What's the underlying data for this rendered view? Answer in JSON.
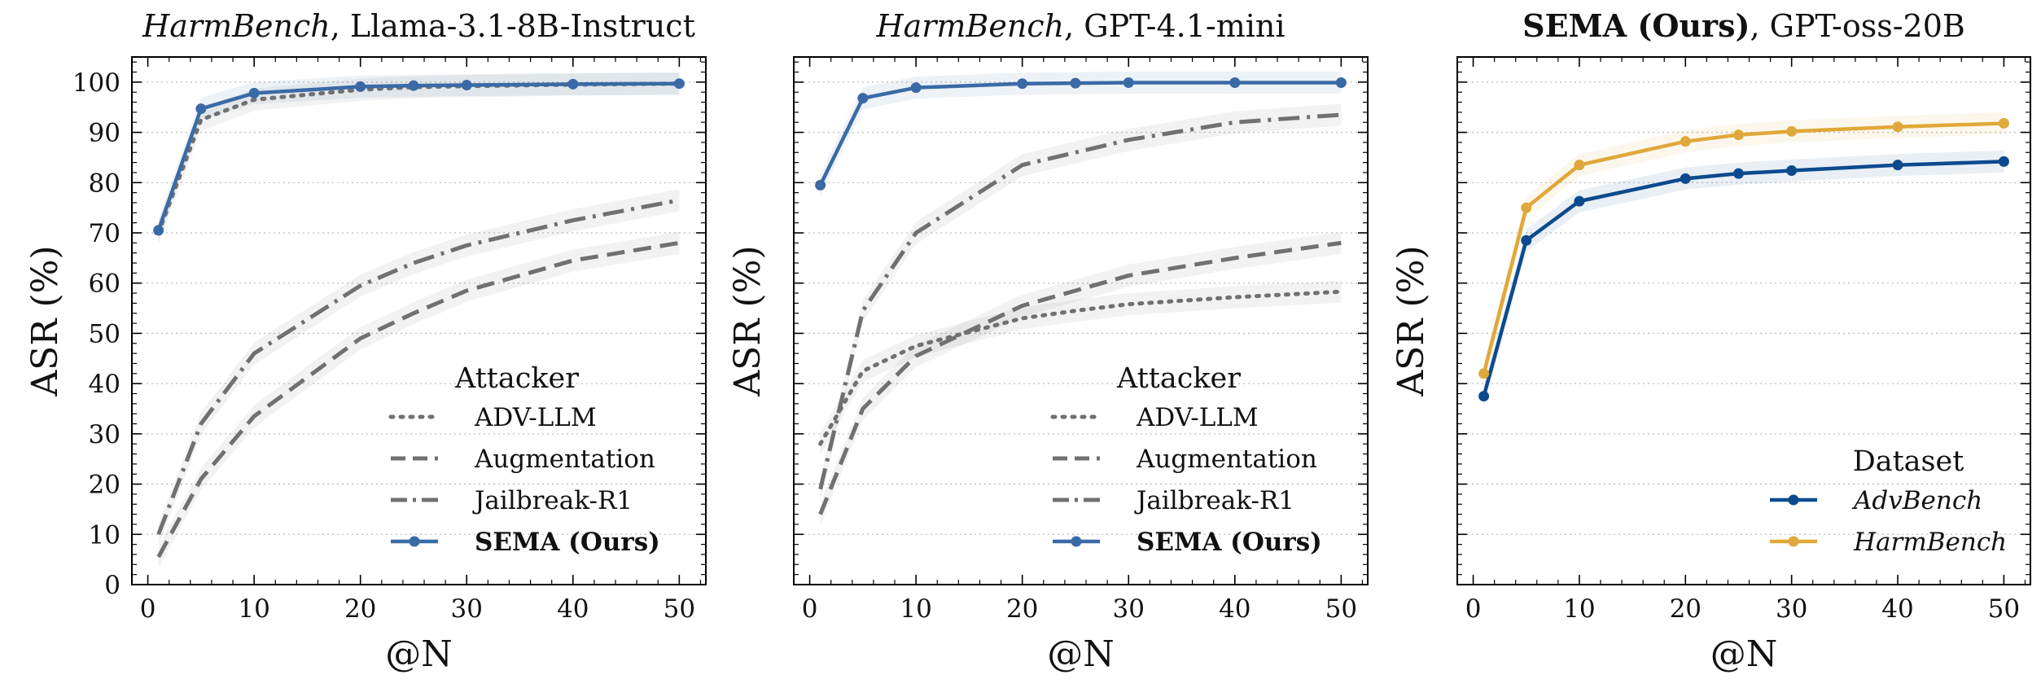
{
  "chart_data": [
    {
      "type": "line",
      "title_italic": "HarmBench",
      "title_rest": ", Llama-3.1-8B-Instruct",
      "xlabel": "@N",
      "ylabel": "ASR (%)",
      "xlim": [
        -1.5,
        52.5
      ],
      "ylim": [
        0,
        105
      ],
      "xticks": [
        0,
        10,
        20,
        30,
        40,
        50
      ],
      "yticks": [
        0,
        10,
        20,
        30,
        40,
        50,
        60,
        70,
        80,
        90,
        100
      ],
      "grid": "horizontal-dotted",
      "legend_title": "Attacker",
      "legend_position": "lower-right",
      "series": [
        {
          "name": "ADV-LLM",
          "style": "dotted",
          "color": "#707070",
          "x": [
            1,
            5,
            10,
            20,
            25,
            30,
            40,
            50
          ],
          "y": [
            70,
            92.5,
            96.5,
            98.5,
            99,
            99.2,
            99.5,
            99.7
          ]
        },
        {
          "name": "Augmentation",
          "style": "dashed",
          "color": "#707070",
          "x": [
            1,
            5,
            10,
            20,
            25,
            30,
            40,
            50
          ],
          "y": [
            5.5,
            21,
            33.5,
            49,
            54,
            58.5,
            64.5,
            68
          ]
        },
        {
          "name": "Jailbreak-R1",
          "style": "dashdot",
          "color": "#707070",
          "x": [
            1,
            5,
            10,
            20,
            25,
            30,
            40,
            50
          ],
          "y": [
            10,
            32,
            46,
            59.5,
            64,
            67.5,
            72.5,
            76.5
          ]
        },
        {
          "name": "SEMA (Ours)",
          "bold": true,
          "style": "solid",
          "markers": true,
          "color": "#3a6aa6",
          "x": [
            1,
            5,
            10,
            20,
            25,
            30,
            40,
            50
          ],
          "y": [
            70.5,
            94.7,
            97.8,
            99.1,
            99.3,
            99.4,
            99.6,
            99.7
          ]
        }
      ]
    },
    {
      "type": "line",
      "title_italic": "HarmBench",
      "title_rest": ", GPT-4.1-mini",
      "xlabel": "@N",
      "ylabel": "ASR (%)",
      "xlim": [
        -1.5,
        52.5
      ],
      "ylim": [
        0,
        105
      ],
      "xticks": [
        0,
        10,
        20,
        30,
        40,
        50
      ],
      "yticks": [
        0,
        10,
        20,
        30,
        40,
        50,
        60,
        70,
        80,
        90,
        100
      ],
      "grid": "horizontal-dotted",
      "legend_title": "Attacker",
      "legend_position": "lower-right",
      "series": [
        {
          "name": "ADV-LLM",
          "style": "dotted",
          "color": "#707070",
          "x": [
            1,
            5,
            10,
            20,
            25,
            30,
            40,
            50
          ],
          "y": [
            28,
            42.5,
            47.5,
            53,
            54.5,
            55.8,
            57.2,
            58.3
          ]
        },
        {
          "name": "Augmentation",
          "style": "dashed",
          "color": "#707070",
          "x": [
            1,
            5,
            10,
            20,
            25,
            30,
            40,
            50
          ],
          "y": [
            14,
            35,
            45.5,
            55.5,
            58.5,
            61.5,
            65,
            68
          ]
        },
        {
          "name": "Jailbreak-R1",
          "style": "dashdot",
          "color": "#707070",
          "x": [
            1,
            5,
            10,
            20,
            25,
            30,
            40,
            50
          ],
          "y": [
            19,
            54.5,
            70,
            83.5,
            86,
            88.5,
            92,
            93.5
          ]
        },
        {
          "name": "SEMA (Ours)",
          "bold": true,
          "style": "solid",
          "markers": true,
          "color": "#3a6aa6",
          "x": [
            1,
            5,
            10,
            20,
            25,
            30,
            40,
            50
          ],
          "y": [
            79.5,
            96.8,
            98.9,
            99.7,
            99.8,
            99.9,
            99.9,
            99.9
          ]
        }
      ]
    },
    {
      "type": "line",
      "title_bold": "SEMA (Ours)",
      "title_rest": ", GPT-oss-20B",
      "xlabel": "@N",
      "ylabel": "ASR (%)",
      "xlim": [
        -1.5,
        52.5
      ],
      "ylim": [
        0,
        105
      ],
      "xticks": [
        0,
        10,
        20,
        30,
        40,
        50
      ],
      "yticks": [
        0,
        10,
        20,
        30,
        40,
        50,
        60,
        70,
        80,
        90,
        100
      ],
      "grid": "horizontal-dotted",
      "legend_title": "Dataset",
      "legend_position": "lower-right",
      "series": [
        {
          "name": "AdvBench",
          "italic": true,
          "style": "solid",
          "markers": true,
          "color": "#0c4a8e",
          "x": [
            1,
            5,
            10,
            20,
            25,
            30,
            40,
            50
          ],
          "y": [
            37.5,
            68.5,
            76.3,
            80.8,
            81.8,
            82.4,
            83.5,
            84.2
          ]
        },
        {
          "name": "HarmBench",
          "italic": true,
          "style": "solid",
          "markers": true,
          "color": "#e0a83a",
          "x": [
            1,
            5,
            10,
            20,
            25,
            30,
            40,
            50
          ],
          "y": [
            42,
            75,
            83.5,
            88.2,
            89.5,
            90.2,
            91.1,
            91.8
          ]
        }
      ]
    }
  ]
}
